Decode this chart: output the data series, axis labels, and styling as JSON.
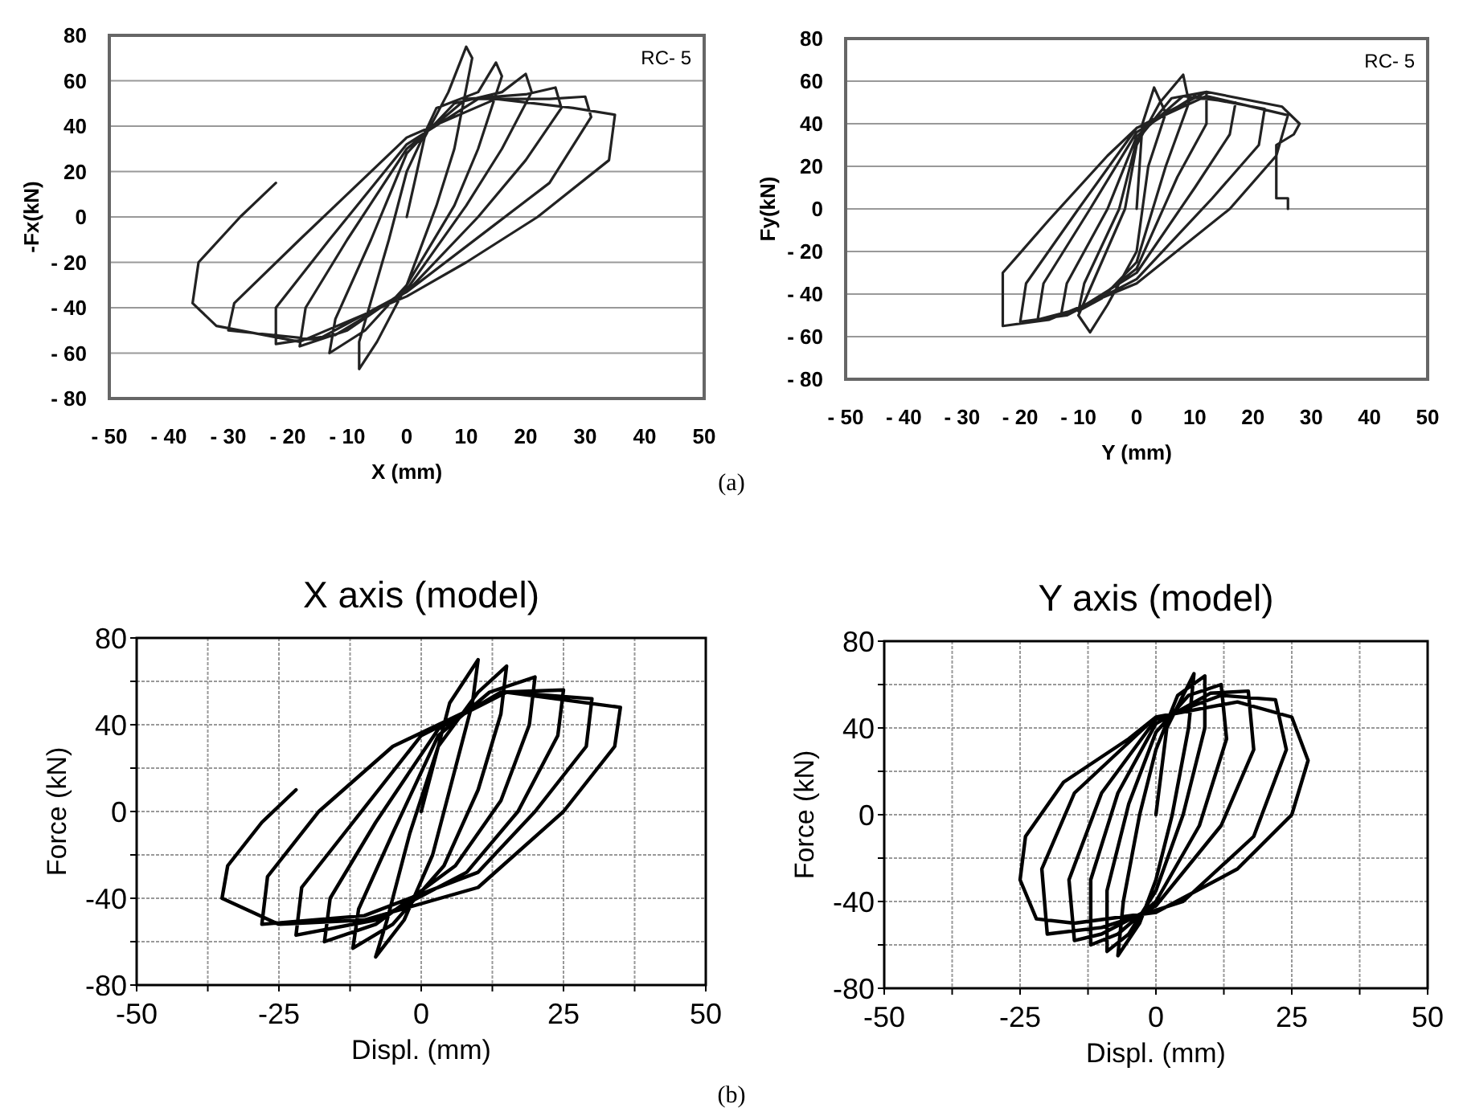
{
  "chart_data": [
    {
      "type": "line",
      "xlabel": "X (mm)",
      "ylabel": "-Fx(kN)",
      "annotations": [
        "RC- 5",
        "(a)"
      ],
      "grid": "y",
      "xlim": [
        -50,
        50
      ],
      "ylim": [
        -80,
        80
      ],
      "xticks": [
        {
          "value": -50,
          "label": "- 50"
        },
        {
          "value": -40,
          "label": "- 40"
        },
        {
          "value": -30,
          "label": "- 30"
        },
        {
          "value": -20,
          "label": "- 20"
        },
        {
          "value": -10,
          "label": "- 10"
        },
        0,
        10,
        20,
        30,
        40,
        50
      ],
      "yticks": [
        {
          "value": -80,
          "label": "- 80"
        },
        {
          "value": -60,
          "label": "- 60"
        },
        {
          "value": -40,
          "label": "- 40"
        },
        {
          "value": -20,
          "label": "- 20"
        },
        0,
        20,
        40,
        60,
        80
      ],
      "series": [
        {
          "color": "#222222",
          "x": [
            0,
            3,
            7,
            10,
            11,
            8,
            5,
            0,
            -5,
            -8,
            -8,
            -3,
            0,
            5,
            12,
            15,
            16,
            12,
            8,
            0,
            -7,
            -13,
            -12,
            -6,
            0,
            8,
            16,
            20,
            21,
            16,
            10,
            0,
            -10,
            -18,
            -17,
            -10,
            0,
            10,
            20,
            25,
            26,
            20,
            12,
            0,
            -12,
            -22,
            -22,
            -13,
            0,
            12,
            24,
            30,
            31,
            24,
            14,
            0,
            -15,
            -30,
            -29,
            -18,
            0,
            15,
            28,
            35,
            34,
            22,
            10,
            0,
            -18,
            -32,
            -36,
            -35,
            -28,
            -22
          ],
          "values": [
            0,
            35,
            55,
            75,
            70,
            30,
            5,
            -30,
            -55,
            -67,
            -55,
            -10,
            20,
            48,
            55,
            68,
            62,
            30,
            5,
            -30,
            -50,
            -60,
            -45,
            -10,
            28,
            50,
            55,
            63,
            55,
            30,
            5,
            -32,
            -50,
            -57,
            -40,
            -10,
            30,
            52,
            54,
            57,
            48,
            25,
            0,
            -33,
            -52,
            -56,
            -40,
            -10,
            32,
            52,
            52,
            53,
            44,
            15,
            -5,
            -33,
            -54,
            -50,
            -38,
            -10,
            35,
            52,
            48,
            45,
            25,
            0,
            -20,
            -35,
            -55,
            -48,
            -38,
            -20,
            0,
            15
          ]
        }
      ]
    },
    {
      "type": "line",
      "xlabel": "Y (mm)",
      "ylabel": "Fy(kN)",
      "annotations": [
        "RC- 5"
      ],
      "grid": "y",
      "xlim": [
        -50,
        50
      ],
      "ylim": [
        -80,
        80
      ],
      "xticks": [
        {
          "value": -50,
          "label": "- 50"
        },
        {
          "value": -40,
          "label": "- 40"
        },
        {
          "value": -30,
          "label": "- 30"
        },
        {
          "value": -20,
          "label": "- 20"
        },
        {
          "value": -10,
          "label": "- 10"
        },
        0,
        10,
        20,
        30,
        40,
        50
      ],
      "yticks": [
        {
          "value": -80,
          "label": "- 80"
        },
        {
          "value": -60,
          "label": "- 60"
        },
        {
          "value": -40,
          "label": "- 40"
        },
        {
          "value": -20,
          "label": "- 20"
        },
        0,
        20,
        40,
        60,
        80
      ],
      "series": [
        {
          "color": "#222222",
          "x": [
            0,
            1,
            3,
            5,
            2,
            0,
            -5,
            -8,
            -10,
            -2,
            0,
            4,
            8,
            9,
            5,
            0,
            -6,
            -10,
            -9,
            -3,
            0,
            6,
            12,
            12,
            7,
            0,
            -8,
            -13,
            -12,
            -5,
            0,
            8,
            17,
            16,
            10,
            0,
            -10,
            -17,
            -16,
            -8,
            0,
            10,
            22,
            21,
            13,
            0,
            -12,
            -20,
            -19,
            -10,
            0,
            12,
            26,
            24,
            16,
            0,
            -15,
            -23,
            -23,
            -15,
            -5,
            0,
            12,
            25,
            28,
            27,
            24,
            24,
            26,
            26
          ],
          "values": [
            0,
            40,
            57,
            45,
            20,
            -20,
            -45,
            -58,
            -50,
            0,
            30,
            50,
            63,
            50,
            20,
            -25,
            -42,
            -48,
            -35,
            0,
            32,
            52,
            55,
            40,
            15,
            -28,
            -45,
            -50,
            -35,
            0,
            34,
            53,
            50,
            35,
            10,
            -30,
            -47,
            -52,
            -35,
            0,
            36,
            53,
            47,
            30,
            5,
            -33,
            -50,
            -53,
            -35,
            0,
            38,
            53,
            44,
            25,
            0,
            -35,
            -52,
            -55,
            -30,
            -5,
            25,
            38,
            55,
            48,
            40,
            35,
            30,
            5,
            5,
            0
          ]
        }
      ]
    },
    {
      "type": "line",
      "title": "X axis (model)",
      "xlabel": "Displ. (mm)",
      "ylabel": "Force (kN)",
      "grid": true,
      "xlim": [
        -50,
        50
      ],
      "ylim": [
        -80,
        80
      ],
      "xticks": [
        -50,
        {
          "value": -37.5,
          "label": null
        },
        -25,
        {
          "value": -12.5,
          "label": null
        },
        0,
        {
          "value": 12.5,
          "label": null
        },
        25,
        {
          "value": 37.5,
          "label": null
        },
        50
      ],
      "yticks": [
        -80,
        {
          "value": -60,
          "label": null
        },
        -40,
        {
          "value": -20,
          "label": null
        },
        0,
        {
          "value": 20,
          "label": null
        },
        40,
        {
          "value": 60,
          "label": null
        },
        80
      ],
      "series": [
        {
          "color": "#000000",
          "x": [
            0,
            5,
            10,
            9,
            6,
            2,
            -3,
            -8,
            -6,
            -2,
            3,
            10,
            15,
            14,
            10,
            4,
            -5,
            -12,
            -11,
            -5,
            3,
            12,
            20,
            19,
            14,
            6,
            -8,
            -17,
            -16,
            -8,
            3,
            14,
            25,
            24,
            17,
            8,
            -8,
            -22,
            -21,
            -12,
            0,
            15,
            30,
            29,
            20,
            10,
            -10,
            -28,
            -27,
            -18,
            -5,
            15,
            35,
            34,
            25,
            10,
            -10,
            -25,
            -35,
            -34,
            -28,
            -22
          ],
          "values": [
            0,
            50,
            70,
            50,
            20,
            -20,
            -50,
            -67,
            -50,
            -10,
            30,
            55,
            67,
            45,
            10,
            -25,
            -52,
            -63,
            -45,
            -10,
            35,
            55,
            62,
            40,
            5,
            -25,
            -52,
            -60,
            -40,
            -5,
            38,
            55,
            56,
            35,
            0,
            -28,
            -50,
            -57,
            -35,
            -5,
            35,
            55,
            52,
            30,
            0,
            -28,
            -48,
            -52,
            -30,
            0,
            30,
            55,
            48,
            30,
            0,
            -35,
            -50,
            -52,
            -40,
            -25,
            -5,
            10
          ]
        }
      ]
    },
    {
      "type": "line",
      "title": "Y axis (model)",
      "xlabel": "Displ. (mm)",
      "ylabel": "Force (kN)",
      "annotations": [
        "(b)"
      ],
      "grid": true,
      "xlim": [
        -50,
        50
      ],
      "ylim": [
        -80,
        80
      ],
      "xticks": [
        -50,
        {
          "value": -37.5,
          "label": null
        },
        -25,
        {
          "value": -12.5,
          "label": null
        },
        0,
        {
          "value": 12.5,
          "label": null
        },
        25,
        {
          "value": 37.5,
          "label": null
        },
        50
      ],
      "yticks": [
        -80,
        {
          "value": -60,
          "label": null
        },
        -40,
        {
          "value": -20,
          "label": null
        },
        0,
        {
          "value": 20,
          "label": null
        },
        40,
        {
          "value": 60,
          "label": null
        },
        80
      ],
      "series": [
        {
          "color": "#000000",
          "x": [
            0,
            2,
            7,
            6,
            3,
            0,
            -3,
            -7,
            -6,
            -3,
            0,
            4,
            9,
            9,
            5,
            0,
            -5,
            -9,
            -9,
            -5,
            0,
            6,
            12,
            13,
            8,
            0,
            -7,
            -12,
            -12,
            -7,
            0,
            10,
            17,
            18,
            12,
            0,
            -10,
            -15,
            -16,
            -10,
            0,
            12,
            22,
            24,
            18,
            5,
            -10,
            -20,
            -21,
            -15,
            0,
            15,
            25,
            28,
            25,
            15,
            0,
            -15,
            -22,
            -25,
            -24,
            -17,
            -5,
            0
          ],
          "values": [
            0,
            40,
            65,
            40,
            0,
            -30,
            -50,
            -65,
            -40,
            0,
            30,
            55,
            64,
            40,
            0,
            -35,
            -55,
            -63,
            -35,
            5,
            38,
            55,
            60,
            35,
            -5,
            -40,
            -55,
            -60,
            -30,
            10,
            42,
            56,
            57,
            30,
            -5,
            -42,
            -55,
            -58,
            -30,
            10,
            44,
            55,
            53,
            30,
            -10,
            -40,
            -52,
            -55,
            -25,
            10,
            45,
            52,
            45,
            25,
            0,
            -25,
            -45,
            -50,
            -48,
            -30,
            -10,
            15,
            35,
            45
          ]
        }
      ]
    }
  ]
}
